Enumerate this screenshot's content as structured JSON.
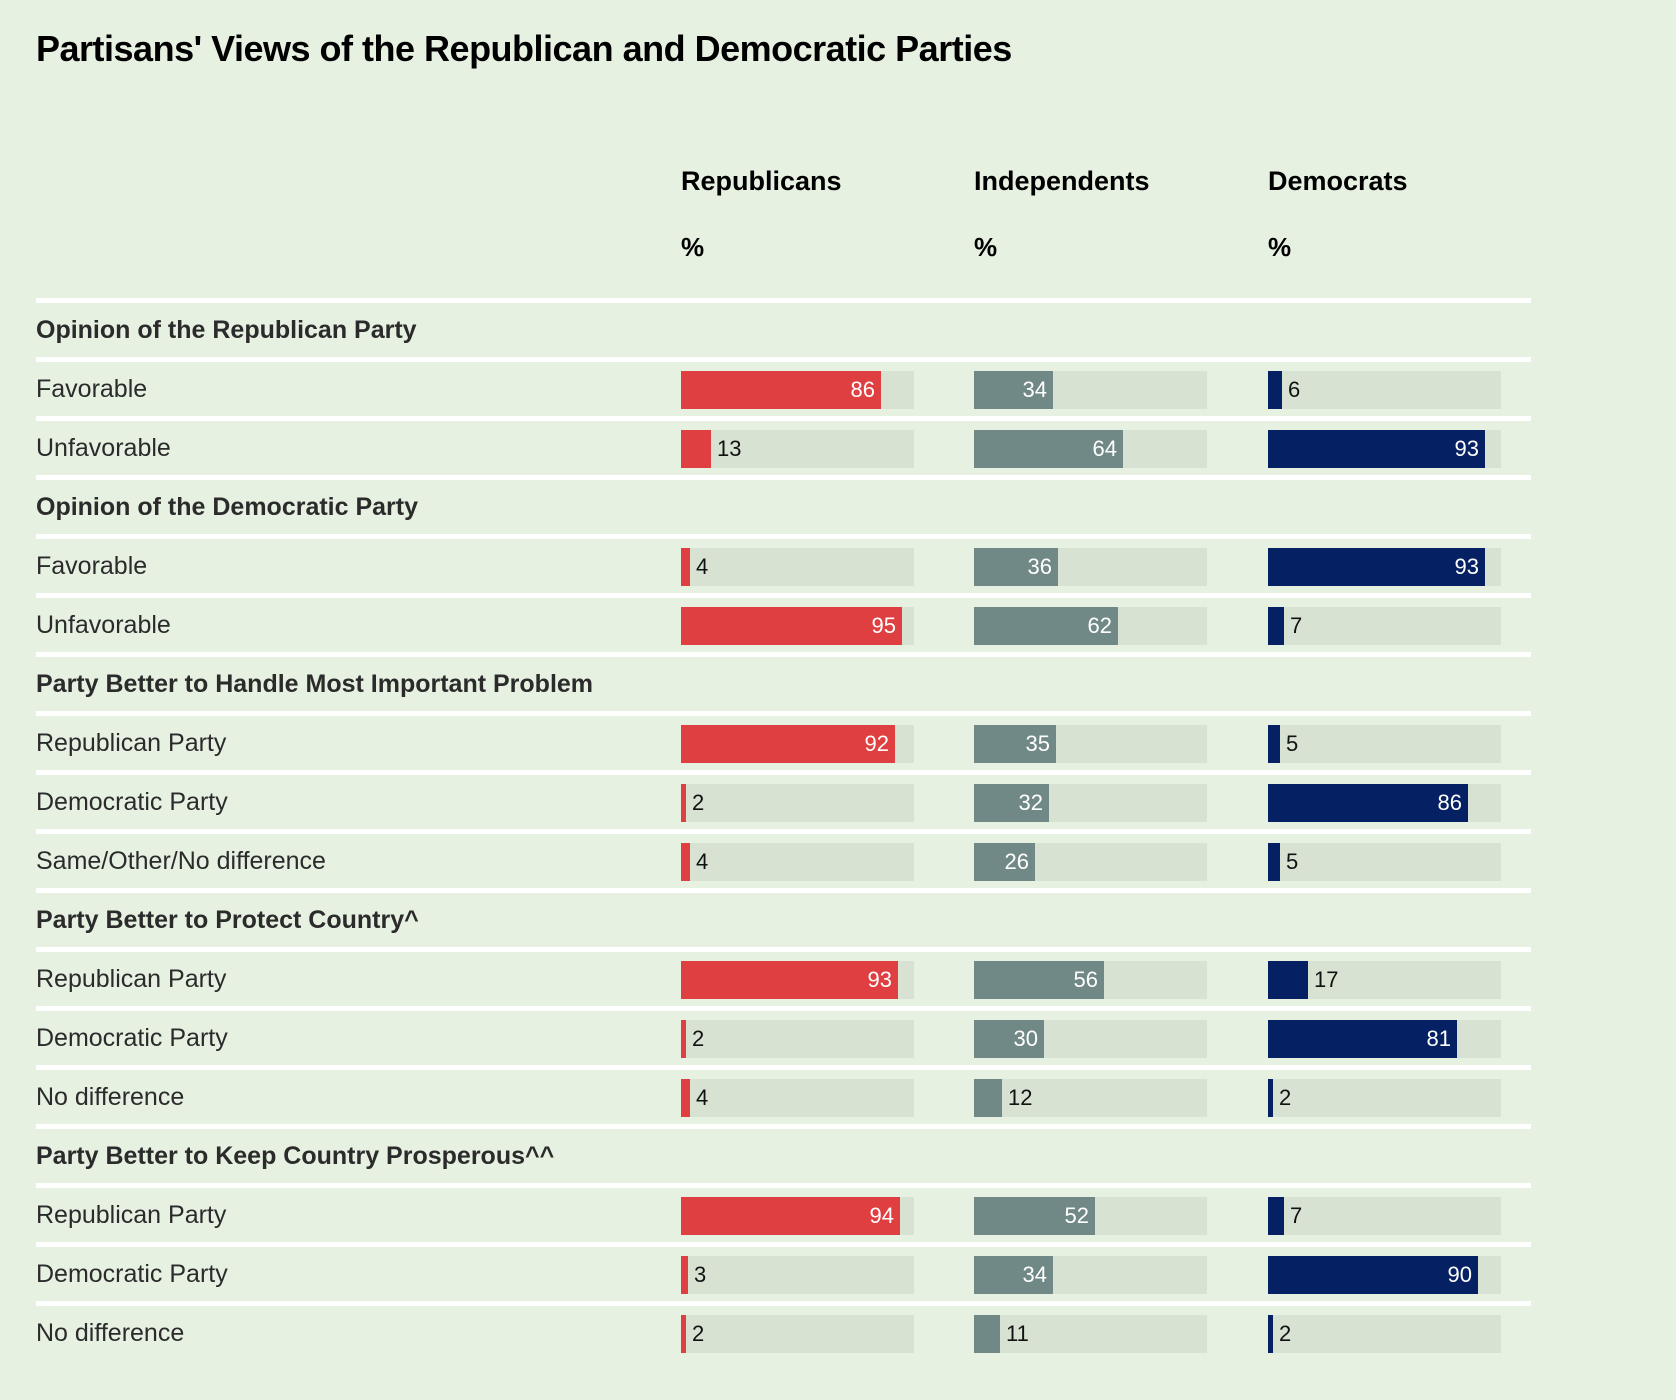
{
  "title": "Partisans' Views of the Republican and Democratic Parties",
  "colors": {
    "background": "#E7F1E2",
    "track": "#D7E2D3",
    "separator": "#FFFFFF",
    "republicans": "#E03F41",
    "independents": "#718986",
    "democrats": "#062163"
  },
  "columns": [
    {
      "key": "republicans",
      "label": "Republicans",
      "unit": "%"
    },
    {
      "key": "independents",
      "label": "Independents",
      "unit": "%"
    },
    {
      "key": "democrats",
      "label": "Democrats",
      "unit": "%"
    }
  ],
  "chart_data": {
    "type": "bar",
    "title": "Partisans' Views of the Republican and Democratic Parties",
    "orientation": "horizontal",
    "unit": "%",
    "xlim": [
      0,
      100
    ],
    "series_names": [
      "Republicans",
      "Independents",
      "Democrats"
    ],
    "groups": [
      {
        "label": "Opinion of the Republican Party",
        "items": [
          {
            "label": "Favorable",
            "values": [
              86,
              34,
              6
            ]
          },
          {
            "label": "Unfavorable",
            "values": [
              13,
              64,
              93
            ]
          }
        ]
      },
      {
        "label": "Opinion of the Democratic Party",
        "items": [
          {
            "label": "Favorable",
            "values": [
              4,
              36,
              93
            ]
          },
          {
            "label": "Unfavorable",
            "values": [
              95,
              62,
              7
            ]
          }
        ]
      },
      {
        "label": "Party Better to Handle Most Important Problem",
        "items": [
          {
            "label": "Republican Party",
            "values": [
              92,
              35,
              5
            ]
          },
          {
            "label": "Democratic Party",
            "values": [
              2,
              32,
              86
            ]
          },
          {
            "label": "Same/Other/No difference",
            "values": [
              4,
              26,
              5
            ]
          }
        ]
      },
      {
        "label": "Party Better to Protect Country^",
        "items": [
          {
            "label": "Republican Party",
            "values": [
              93,
              56,
              17
            ]
          },
          {
            "label": "Democratic Party",
            "values": [
              2,
              30,
              81
            ]
          },
          {
            "label": "No difference",
            "values": [
              4,
              12,
              2
            ]
          }
        ]
      },
      {
        "label": "Party Better to Keep Country Prosperous^^",
        "items": [
          {
            "label": "Republican Party",
            "values": [
              94,
              52,
              7
            ]
          },
          {
            "label": "Democratic Party",
            "values": [
              3,
              34,
              90
            ]
          },
          {
            "label": "No difference",
            "values": [
              2,
              11,
              2
            ]
          }
        ]
      }
    ]
  }
}
